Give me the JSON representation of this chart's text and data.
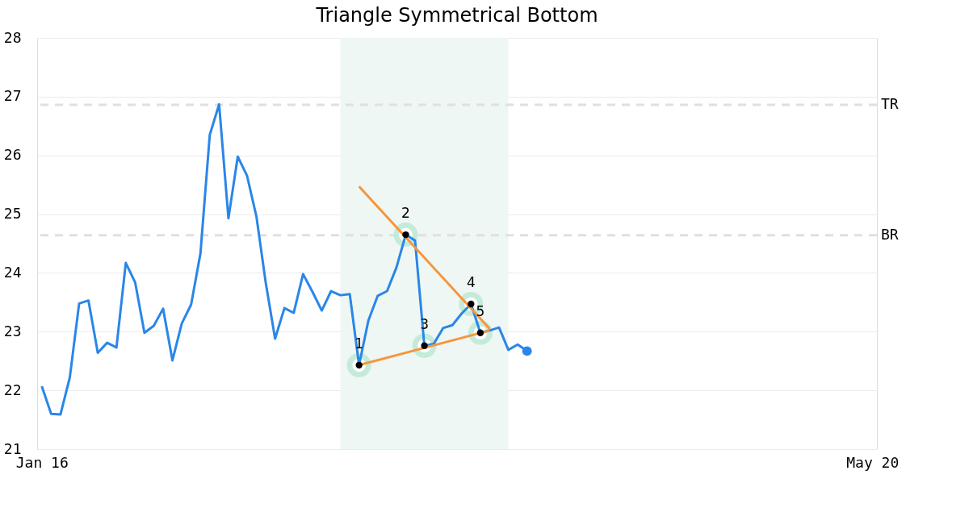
{
  "chart_data": {
    "type": "line",
    "title": "Triangle Symmetrical Bottom",
    "categories": [
      "Jan 16",
      null,
      null,
      null,
      null,
      null,
      null,
      null,
      null,
      null,
      null,
      null,
      null,
      null,
      null,
      null,
      null,
      null,
      null,
      null,
      null,
      null,
      null,
      null,
      null,
      null,
      null,
      null,
      null,
      null,
      null,
      null,
      null,
      null,
      null,
      null,
      null,
      null,
      null,
      null,
      null,
      null,
      null,
      null,
      null,
      null,
      null,
      null,
      null,
      null,
      null,
      null,
      null,
      null,
      null,
      null,
      null,
      null,
      null,
      null,
      null,
      null,
      null,
      null,
      null,
      null,
      null,
      null,
      null,
      null,
      null,
      null,
      null,
      null,
      null,
      null,
      null,
      null,
      null,
      null,
      null,
      null,
      null,
      null,
      null,
      null,
      null,
      null,
      null,
      "May 20"
    ],
    "ylim": [
      21,
      28
    ],
    "yticks": [
      21,
      22,
      23,
      24,
      25,
      26,
      27,
      28
    ],
    "grid": "y",
    "series": [
      {
        "color": "#2a86e8",
        "values": [
          22.07,
          21.6,
          21.59,
          22.22,
          23.48,
          23.53,
          22.64,
          22.81,
          22.73,
          24.17,
          23.84,
          22.98,
          23.1,
          23.39,
          22.51,
          23.14,
          23.46,
          24.33,
          26.35,
          26.87,
          24.93,
          25.98,
          25.65,
          24.96,
          23.83,
          22.88,
          23.4,
          23.32,
          23.98,
          23.68,
          23.36,
          23.69,
          23.62,
          23.64,
          22.43,
          23.19,
          23.61,
          23.69,
          24.09,
          24.65,
          24.55,
          22.76,
          22.79,
          23.06,
          23.11,
          23.31,
          23.47,
          22.98,
          23.02,
          23.07,
          22.69,
          22.78,
          22.67,
          null,
          null,
          null,
          null,
          null,
          null,
          null,
          null,
          null,
          null,
          null,
          null,
          null,
          null,
          null,
          null,
          null,
          null,
          null,
          null,
          null,
          null,
          null,
          null,
          null,
          null,
          null,
          null,
          null,
          null,
          null,
          null,
          null,
          null,
          null,
          null,
          null
        ]
      },
      {
        "type": "line",
        "color": "#f7953b",
        "values": [
          null,
          null,
          null,
          null,
          null,
          null,
          null,
          null,
          null,
          null,
          null,
          null,
          null,
          null,
          null,
          null,
          null,
          null,
          null,
          null,
          null,
          null,
          null,
          null,
          null,
          null,
          null,
          null,
          null,
          null,
          null,
          null,
          null,
          null,
          25.47,
          null,
          null,
          null,
          null,
          null,
          null,
          null,
          null,
          null,
          null,
          null,
          null,
          null,
          23.05,
          null,
          null,
          null,
          null,
          null,
          null,
          null,
          null,
          null,
          null,
          null,
          null,
          null,
          null,
          null,
          null,
          null,
          null,
          null,
          null,
          null,
          null,
          null,
          null,
          null,
          null,
          null,
          null,
          null,
          null,
          null,
          null,
          null,
          null,
          null,
          null,
          null,
          null,
          null,
          null,
          null
        ]
      },
      {
        "type": "line",
        "color": "#f7953b",
        "values": [
          null,
          null,
          null,
          null,
          null,
          null,
          null,
          null,
          null,
          null,
          null,
          null,
          null,
          null,
          null,
          null,
          null,
          null,
          null,
          null,
          null,
          null,
          null,
          null,
          null,
          null,
          null,
          null,
          null,
          null,
          null,
          null,
          null,
          null,
          22.43,
          null,
          null,
          null,
          null,
          null,
          null,
          null,
          null,
          null,
          null,
          null,
          null,
          null,
          23.02,
          null,
          null,
          null,
          null,
          null,
          null,
          null,
          null,
          null,
          null,
          null,
          null,
          null,
          null,
          null,
          null,
          null,
          null,
          null,
          null,
          null,
          null,
          null,
          null,
          null,
          null,
          null,
          null,
          null,
          null,
          null,
          null,
          null,
          null,
          null,
          null,
          null,
          null,
          null,
          null,
          null
        ]
      },
      {
        "type": "scatter",
        "color": "#000000",
        "marker": "circle",
        "values": [
          null,
          null,
          null,
          null,
          null,
          null,
          null,
          null,
          null,
          null,
          null,
          null,
          null,
          null,
          null,
          null,
          null,
          null,
          null,
          null,
          null,
          null,
          null,
          null,
          null,
          null,
          null,
          null,
          null,
          null,
          null,
          null,
          null,
          null,
          22.43,
          null,
          null,
          null,
          null,
          24.65,
          null,
          22.76,
          null,
          null,
          null,
          null,
          23.47,
          22.98,
          null,
          null,
          null,
          null,
          null,
          null,
          null,
          null,
          null,
          null,
          null,
          null,
          null,
          null,
          null,
          null,
          null,
          null,
          null,
          null,
          null,
          null,
          null,
          null,
          null,
          null,
          null,
          null,
          null,
          null,
          null,
          null,
          null,
          null,
          null,
          null,
          null,
          null,
          null,
          null,
          null,
          null
        ]
      },
      {
        "type": "scatter",
        "color": "#2a86e8",
        "marker": "circle",
        "values": [
          null,
          null,
          null,
          null,
          null,
          null,
          null,
          null,
          null,
          null,
          null,
          null,
          null,
          null,
          null,
          null,
          null,
          null,
          null,
          null,
          null,
          null,
          null,
          null,
          null,
          null,
          null,
          null,
          null,
          null,
          null,
          null,
          null,
          null,
          null,
          null,
          null,
          null,
          null,
          null,
          null,
          null,
          null,
          null,
          null,
          null,
          null,
          null,
          null,
          null,
          null,
          null,
          22.67,
          null,
          null,
          null,
          null,
          null,
          null,
          null,
          null,
          null,
          null,
          null,
          null,
          null,
          null,
          null,
          null,
          null,
          null,
          null,
          null,
          null,
          null,
          null,
          null,
          null,
          null,
          null,
          null,
          null,
          null,
          null,
          null,
          null,
          null,
          null,
          null,
          null
        ]
      }
    ],
    "annotations": [
      {
        "text": "1",
        "y": 22.43
      },
      {
        "text": "2",
        "y": 24.65
      },
      {
        "text": "3",
        "y": 22.76
      },
      {
        "text": "4",
        "y": 23.47
      },
      {
        "text": "5",
        "y": 22.98
      }
    ],
    "ref_lines": [
      {
        "axis": "y",
        "value": 26.86,
        "label": "TR",
        "color": "#e0e0e0",
        "line_style": "dashed"
      },
      {
        "axis": "y",
        "value": 24.64,
        "label": "BR",
        "color": "#e0e0e0",
        "line_style": "dashed"
      }
    ]
  }
}
